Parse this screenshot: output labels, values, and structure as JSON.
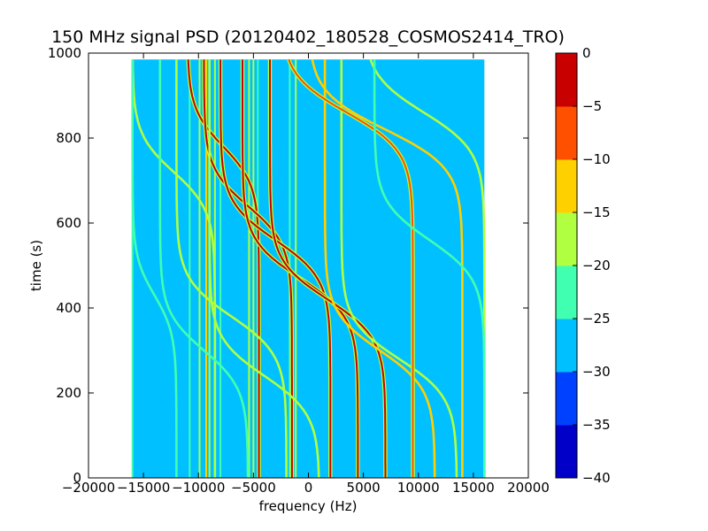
{
  "chart_data": {
    "type": "heatmap",
    "title": "150 MHz signal PSD (20120402_180528_COSMOS2414_TRO)",
    "xlabel": "frequency (Hz)",
    "ylabel": "time (s)",
    "xlim": [
      -20000,
      20000
    ],
    "ylim": [
      0,
      1000
    ],
    "xticks": [
      -20000,
      -15000,
      -10000,
      -5000,
      0,
      5000,
      10000,
      15000,
      20000
    ],
    "yticks": [
      0,
      200,
      400,
      600,
      800,
      1000
    ],
    "data_extent": {
      "x": [
        -16000,
        16000
      ],
      "y": [
        0,
        985
      ]
    },
    "background_level": -27.5,
    "colorbar": {
      "levels": [
        -40,
        -35,
        -30,
        -25,
        -20,
        -15,
        -10,
        -5,
        0
      ],
      "colors": [
        "#0000c8",
        "#0040ff",
        "#00c0ff",
        "#40ffb0",
        "#b0ff40",
        "#ffd000",
        "#ff5000",
        "#c80000"
      ]
    },
    "vertical_lines": [
      {
        "x": -16000,
        "level": -22.5
      },
      {
        "x": -10800,
        "level": -22.5
      },
      {
        "x": -9900,
        "level": -17.5
      },
      {
        "x": -9300,
        "level": -12.5
      },
      {
        "x": -9000,
        "level": -17.5
      },
      {
        "x": -8500,
        "level": -17.5
      },
      {
        "x": -8000,
        "level": -22.5
      },
      {
        "x": -5400,
        "level": -17.5
      },
      {
        "x": -5000,
        "level": -17.5
      },
      {
        "x": -4600,
        "level": -22.5
      },
      {
        "x": -1700,
        "level": -22.5
      },
      {
        "x": -1150,
        "level": -17.5
      }
    ],
    "tracks": [
      {
        "x_start": -11000,
        "x_end": -4500,
        "t_mid": 780,
        "level": -2.5
      },
      {
        "x_start": -9500,
        "x_end": -1500,
        "t_mid": 640,
        "level": -2.5
      },
      {
        "x_start": -8000,
        "x_end": 2000,
        "t_mid": 560,
        "level": -2.5
      },
      {
        "x_start": -6000,
        "x_end": 4500,
        "t_mid": 470,
        "level": -2.5
      },
      {
        "x_start": -3500,
        "x_end": 7000,
        "t_mid": 420,
        "level": -2.5
      },
      {
        "x_start": 1500,
        "x_end": 11500,
        "t_mid": 300,
        "level": -12.5
      },
      {
        "x_start": 3000,
        "x_end": 13500,
        "t_mid": 280,
        "level": -17.5
      },
      {
        "x_start": -16000,
        "x_end": -8500,
        "t_mid": 720,
        "level": -17.5
      },
      {
        "x_start": -16000,
        "x_end": -12000,
        "t_mid": 430,
        "level": -22.5
      },
      {
        "x_start": -2500,
        "x_end": 9500,
        "t_mid": 860,
        "level": -7.5
      },
      {
        "x_start": 0,
        "x_end": 14000,
        "t_mid": 820,
        "level": -12.5
      },
      {
        "x_start": 5000,
        "x_end": 16000,
        "t_mid": 860,
        "level": -17.5
      },
      {
        "x_start": -12000,
        "x_end": -2000,
        "t_mid": 380,
        "level": -17.5
      },
      {
        "x_start": -13500,
        "x_end": -5500,
        "t_mid": 300,
        "level": -22.5
      },
      {
        "x_start": -9000,
        "x_end": 1000,
        "t_mid": 240,
        "level": -17.5
      },
      {
        "x_start": 6000,
        "x_end": 16000,
        "t_mid": 560,
        "level": -22.5
      }
    ],
    "grid": false,
    "legend": "none"
  }
}
